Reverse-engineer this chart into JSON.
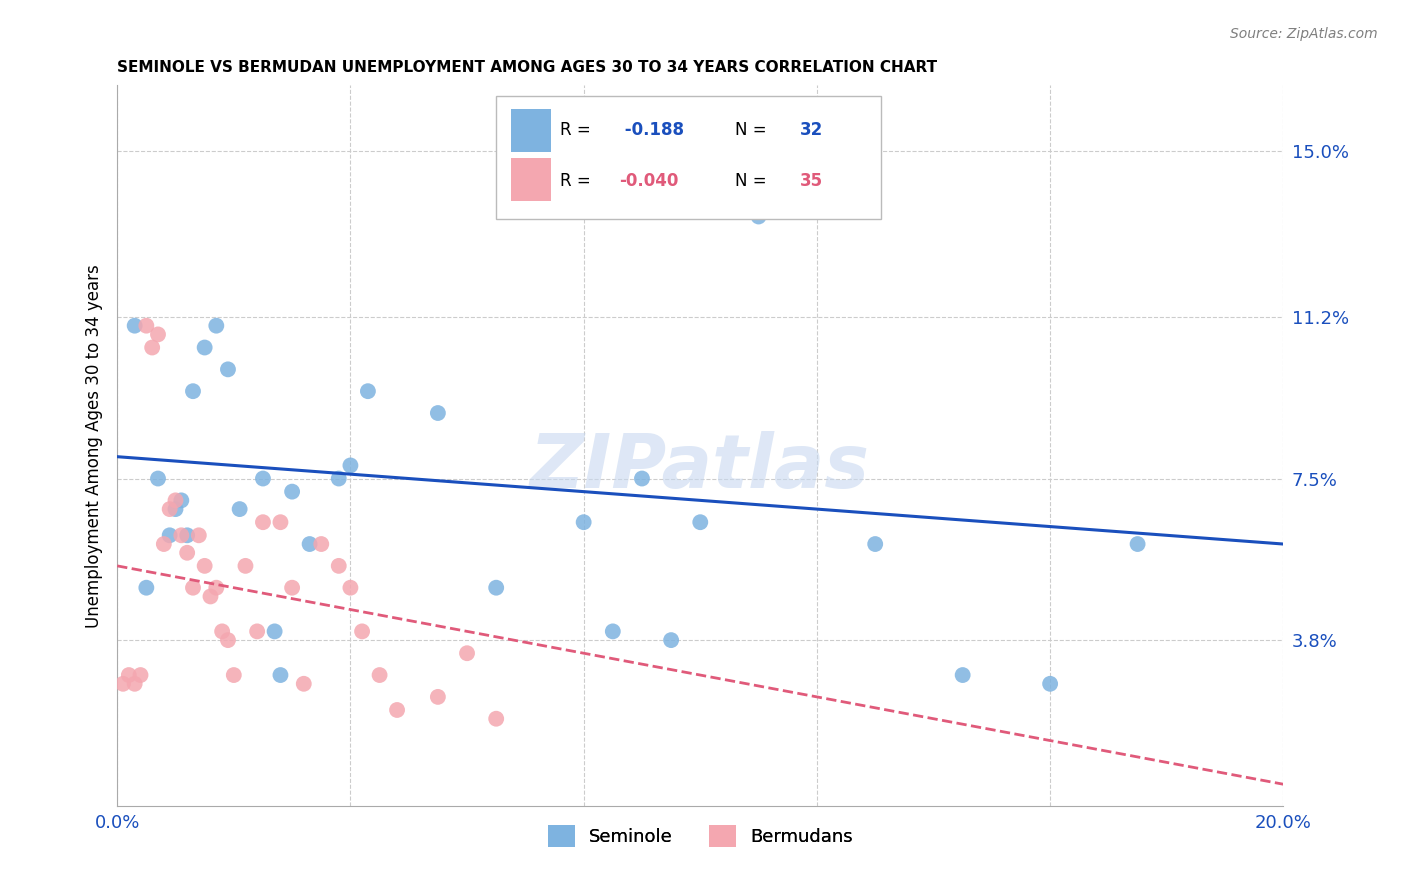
{
  "title": "SEMINOLE VS BERMUDAN UNEMPLOYMENT AMONG AGES 30 TO 34 YEARS CORRELATION CHART",
  "source": "Source: ZipAtlas.com",
  "ylabel": "Unemployment Among Ages 30 to 34 years",
  "xlim": [
    0.0,
    0.2
  ],
  "ylim": [
    0.0,
    0.165
  ],
  "xticks": [
    0.0,
    0.04,
    0.08,
    0.12,
    0.16,
    0.2
  ],
  "xticklabels": [
    "0.0%",
    "",
    "",
    "",
    "",
    "20.0%"
  ],
  "ytick_positions": [
    0.038,
    0.075,
    0.112,
    0.15
  ],
  "ytick_labels": [
    "3.8%",
    "7.5%",
    "11.2%",
    "15.0%"
  ],
  "seminole_color": "#7eb3e0",
  "bermudans_color": "#f4a7b0",
  "seminole_line_color": "#1a4fbd",
  "bermudans_line_color": "#e05a7a",
  "watermark": "ZIPatlas",
  "seminole_x": [
    0.003,
    0.005,
    0.007,
    0.009,
    0.01,
    0.011,
    0.012,
    0.013,
    0.015,
    0.017,
    0.019,
    0.021,
    0.025,
    0.027,
    0.028,
    0.03,
    0.033,
    0.038,
    0.04,
    0.043,
    0.055,
    0.065,
    0.08,
    0.085,
    0.09,
    0.095,
    0.1,
    0.11,
    0.13,
    0.145,
    0.16,
    0.175
  ],
  "seminole_y": [
    0.11,
    0.05,
    0.075,
    0.062,
    0.068,
    0.07,
    0.062,
    0.095,
    0.105,
    0.11,
    0.1,
    0.068,
    0.075,
    0.04,
    0.03,
    0.072,
    0.06,
    0.075,
    0.078,
    0.095,
    0.09,
    0.05,
    0.065,
    0.04,
    0.075,
    0.038,
    0.065,
    0.135,
    0.06,
    0.03,
    0.028,
    0.06
  ],
  "bermudans_x": [
    0.001,
    0.002,
    0.003,
    0.004,
    0.005,
    0.006,
    0.007,
    0.008,
    0.009,
    0.01,
    0.011,
    0.012,
    0.013,
    0.014,
    0.015,
    0.016,
    0.017,
    0.018,
    0.019,
    0.02,
    0.022,
    0.024,
    0.025,
    0.028,
    0.03,
    0.032,
    0.035,
    0.038,
    0.04,
    0.042,
    0.045,
    0.048,
    0.055,
    0.06,
    0.065
  ],
  "bermudans_y": [
    0.028,
    0.03,
    0.028,
    0.03,
    0.11,
    0.105,
    0.108,
    0.06,
    0.068,
    0.07,
    0.062,
    0.058,
    0.05,
    0.062,
    0.055,
    0.048,
    0.05,
    0.04,
    0.038,
    0.03,
    0.055,
    0.04,
    0.065,
    0.065,
    0.05,
    0.028,
    0.06,
    0.055,
    0.05,
    0.04,
    0.03,
    0.022,
    0.025,
    0.035,
    0.02
  ],
  "background_color": "#ffffff",
  "grid_color": "#cccccc",
  "seminole_trend_x0": 0.0,
  "seminole_trend_y0": 0.08,
  "seminole_trend_x1": 0.2,
  "seminole_trend_y1": 0.06,
  "bermudans_trend_x0": 0.0,
  "bermudans_trend_y0": 0.055,
  "bermudans_trend_x1": 0.2,
  "bermudans_trend_y1": 0.005
}
